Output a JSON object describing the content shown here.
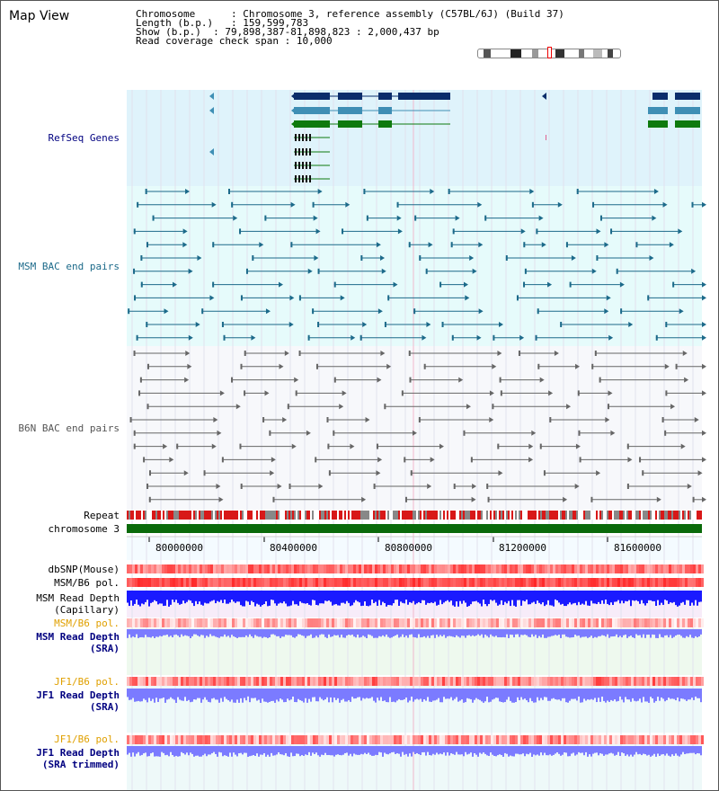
{
  "title": "Map View",
  "header": {
    "chromosome_key": "Chromosome",
    "chromosome_val": "Chromosome 3, reference assembly (C57BL/6J) (Build 37)",
    "length_key": "Length (b.p.)",
    "length_val": "159,599,783",
    "show_key": "Show (b.p.)",
    "show_val": "79,898,387-81,898,823 : 2,000,437 bp",
    "coverage_key": "Read coverage check span",
    "coverage_val": "10,000"
  },
  "tracks": {
    "refseq": "RefSeq Genes",
    "msm_bac": "MSM BAC end pairs",
    "b6n_bac": "B6N BAC end pairs",
    "repeat": "Repeat",
    "chromosome": "chromosome 3",
    "dbsnp": "dbSNP(Mouse)",
    "msm_b6_pol1": "MSM/B6 pol.",
    "msm_read_depth1_a": "MSM Read Depth",
    "msm_read_depth1_b": "(Capillary)",
    "msm_b6_pol2": "MSM/B6 pol.",
    "msm_read_depth2_a": "MSM Read Depth",
    "msm_read_depth2_b": "(SRA)",
    "jf1_b6_pol1": "JF1/B6 pol.",
    "jf1_read_depth1_a": "JF1 Read Depth",
    "jf1_read_depth1_b": "(SRA)",
    "jf1_b6_pol2": "JF1/B6 pol.",
    "jf1_read_depth2_a": "JF1 Read Depth",
    "jf1_read_depth2_b": "(SRA trimmed)"
  },
  "axis_ticks": [
    "80000000",
    "80400000",
    "80800000",
    "81200000",
    "81600000"
  ],
  "colors": {
    "refseq_bg": "#dff3fb",
    "msm_bg": "#e6fbfb",
    "b6n_bg": "#f6f8fb",
    "gene_dark": "#0b2d6b",
    "gene_mid": "#3f8fb5",
    "gene_green": "#0e7a0e",
    "msm_line": "#1c6a8a",
    "b6n_line": "#666666",
    "chromosome_bar": "#0a6a0a",
    "depth_blue": "#1a1aff",
    "depth_light": "#7b7bff",
    "label_navy": "#000080",
    "label_orange": "#e0a000"
  }
}
